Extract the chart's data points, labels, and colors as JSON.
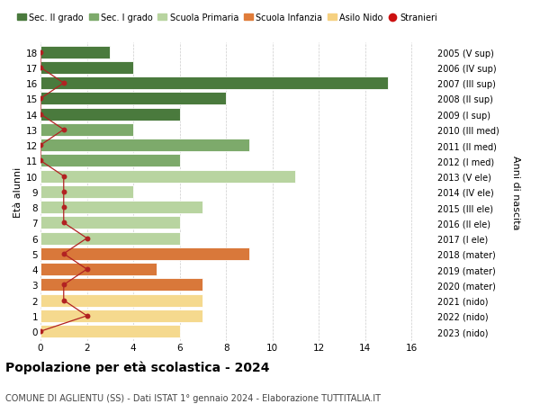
{
  "ages": [
    18,
    17,
    16,
    15,
    14,
    13,
    12,
    11,
    10,
    9,
    8,
    7,
    6,
    5,
    4,
    3,
    2,
    1,
    0
  ],
  "right_labels": [
    "2005 (V sup)",
    "2006 (IV sup)",
    "2007 (III sup)",
    "2008 (II sup)",
    "2009 (I sup)",
    "2010 (III med)",
    "2011 (II med)",
    "2012 (I med)",
    "2013 (V ele)",
    "2014 (IV ele)",
    "2015 (III ele)",
    "2016 (II ele)",
    "2017 (I ele)",
    "2018 (mater)",
    "2019 (mater)",
    "2020 (mater)",
    "2021 (nido)",
    "2022 (nido)",
    "2023 (nido)"
  ],
  "bar_values": [
    3,
    4,
    15,
    8,
    6,
    4,
    9,
    6,
    11,
    4,
    7,
    6,
    6,
    9,
    5,
    7,
    7,
    7,
    6
  ],
  "bar_colors": [
    "#4a7a3d",
    "#4a7a3d",
    "#4a7a3d",
    "#4a7a3d",
    "#4a7a3d",
    "#7daa6b",
    "#7daa6b",
    "#7daa6b",
    "#b8d4a0",
    "#b8d4a0",
    "#b8d4a0",
    "#b8d4a0",
    "#b8d4a0",
    "#d9783a",
    "#d9783a",
    "#d9783a",
    "#f5d98e",
    "#f5d98e",
    "#f5d98e"
  ],
  "stranieri_values": [
    0,
    0,
    1,
    0,
    0,
    1,
    0,
    0,
    1,
    1,
    1,
    1,
    2,
    1,
    2,
    1,
    1,
    2,
    0
  ],
  "stranieri_color": "#b22222",
  "legend_items": [
    {
      "label": "Sec. II grado",
      "color": "#4a7a3d"
    },
    {
      "label": "Sec. I grado",
      "color": "#7daa6b"
    },
    {
      "label": "Scuola Primaria",
      "color": "#b8d4a0"
    },
    {
      "label": "Scuola Infanzia",
      "color": "#e07c3a"
    },
    {
      "label": "Asilo Nido",
      "color": "#f5d080"
    },
    {
      "label": "Stranieri",
      "color": "#cc1111",
      "marker": "o"
    }
  ],
  "ylabel_left": "Età alunni",
  "ylabel_right": "Anni di nascita",
  "title": "Popolazione per età scolastica - 2024",
  "subtitle": "COMUNE DI AGLIENTU (SS) - Dati ISTAT 1° gennaio 2024 - Elaborazione TUTTITALIA.IT",
  "xlim": [
    0,
    17
  ],
  "xticks": [
    0,
    2,
    4,
    6,
    8,
    10,
    12,
    14,
    16
  ],
  "background_color": "#ffffff",
  "grid_color": "#cccccc"
}
